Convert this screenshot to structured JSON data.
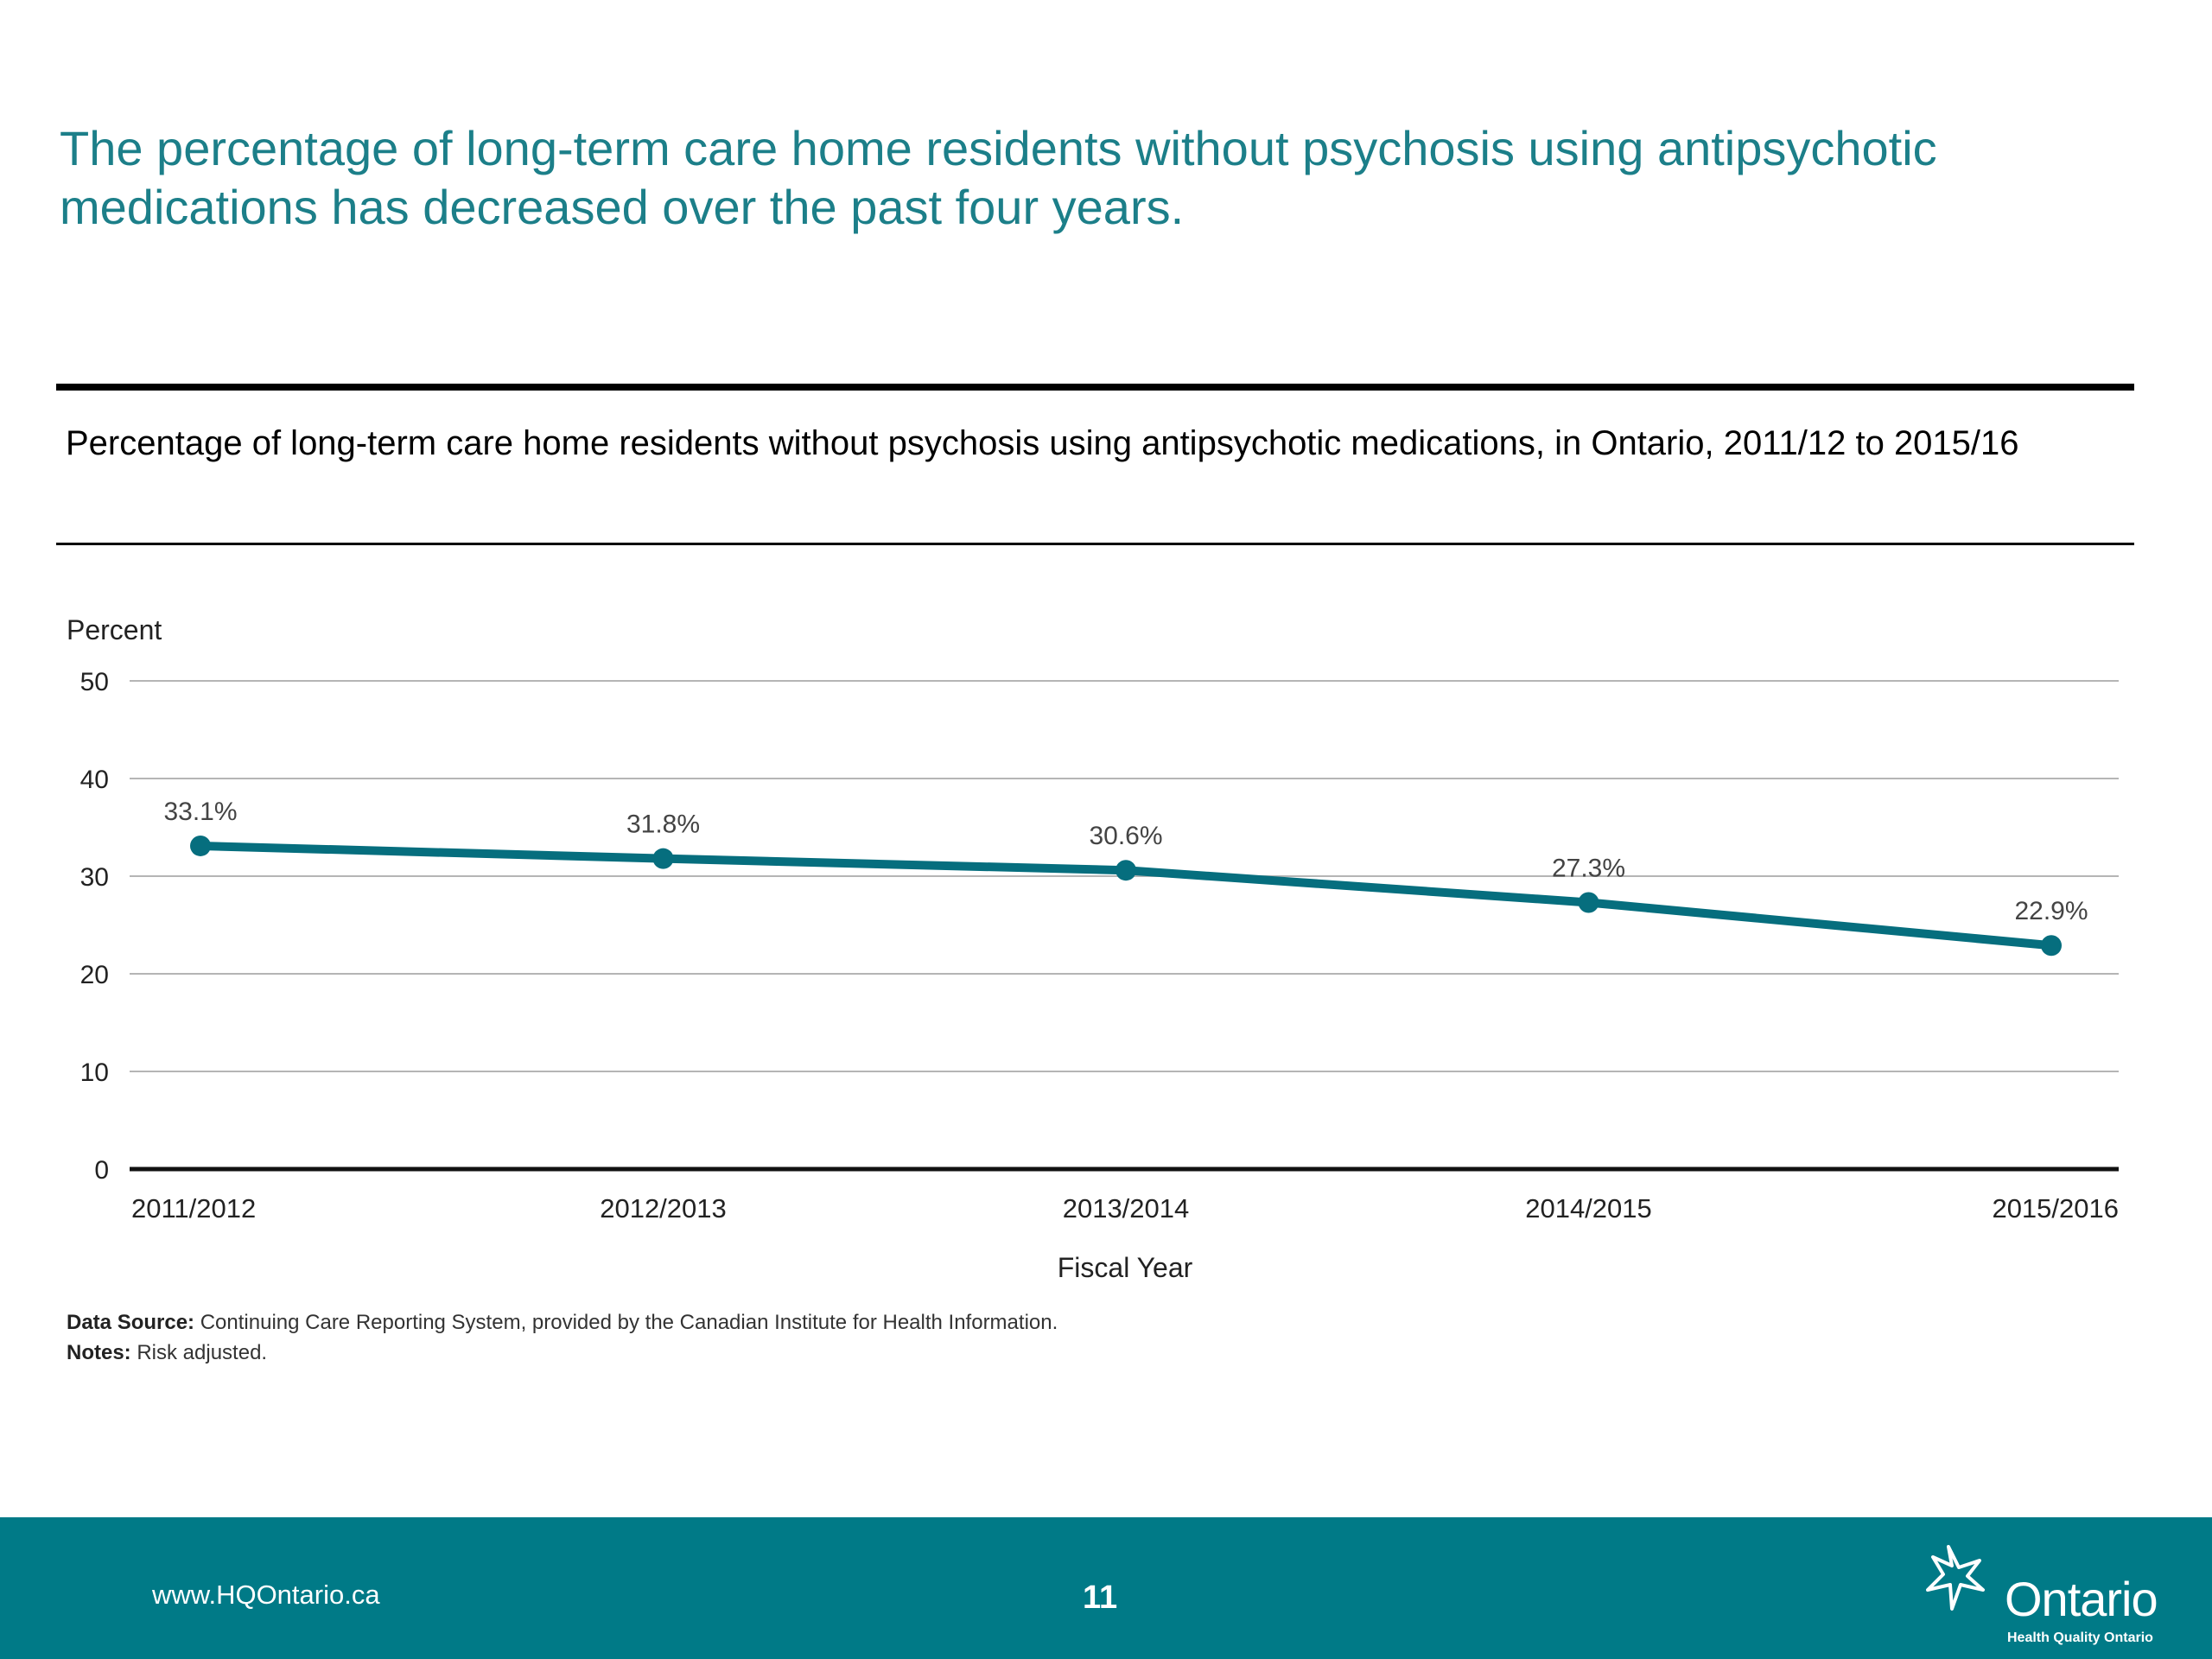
{
  "slide": {
    "headline": "The percentage of long-term care home residents without psychosis using antipsychotic medications has decreased over the past four years.",
    "chart_title": "Percentage of long-term care home residents without psychosis using antipsychotic medications, in Ontario, 2011/12 to 2015/16",
    "data_source_label": "Data Source:",
    "data_source_text": " Continuing Care Reporting System, provided by the Canadian Institute for Health Information.",
    "notes_label": "Notes:",
    "notes_text": " Risk adjusted."
  },
  "footer": {
    "url": "www.HQOntario.ca",
    "page_number": "11",
    "logo_word": "Ontario",
    "logo_sub": "Health Quality Ontario",
    "background": "#007a87"
  },
  "chart_data": {
    "type": "line",
    "title": "",
    "xlabel": "Fiscal Year",
    "ylabel": "Percent",
    "categories": [
      "2011/2012",
      "2012/2013",
      "2013/2014",
      "2014/2015",
      "2015/2016"
    ],
    "series": [
      {
        "values": [
          33.1,
          31.8,
          30.6,
          27.3,
          22.9
        ],
        "color": "#066e7e"
      }
    ],
    "data_labels": [
      "33.1%",
      "31.8%",
      "30.6%",
      "27.3%",
      "22.9%"
    ],
    "ylim": [
      0,
      50
    ],
    "yticks": [
      0,
      10,
      20,
      30,
      40,
      50
    ],
    "grid": true
  }
}
